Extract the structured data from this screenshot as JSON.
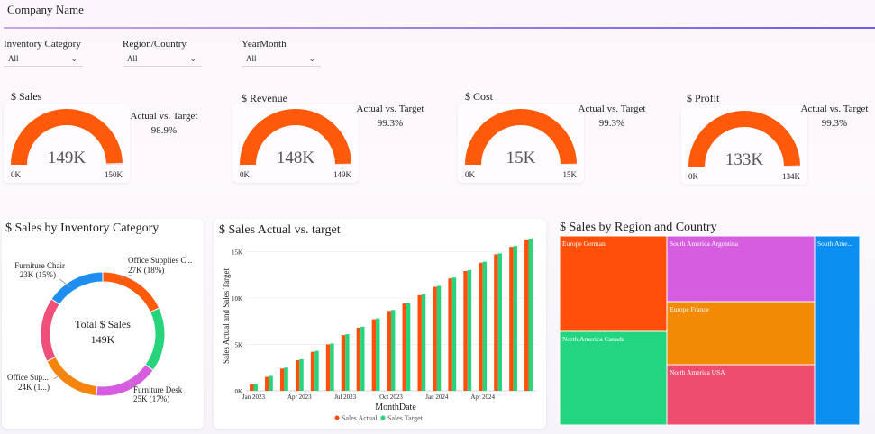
{
  "header": {
    "title": "Company Name"
  },
  "filters": [
    {
      "label": "Inventory Category",
      "value": "All"
    },
    {
      "label": "Region/Country",
      "value": "All"
    },
    {
      "label": "YearMonth",
      "value": "All"
    }
  ],
  "kpis": [
    {
      "title": "$ Sales",
      "value_label": "149K",
      "min_label": "0K",
      "max_label": "150K",
      "avt_label": "Actual vs. Target",
      "avt_pct": "98.9%",
      "fill": 0.989
    },
    {
      "title": "$ Revenue",
      "value_label": "148K",
      "min_label": "0K",
      "max_label": "149K",
      "avt_label": "Actual vs. Target",
      "avt_pct": "99.3%",
      "fill": 0.993
    },
    {
      "title": "$ Cost",
      "value_label": "15K",
      "min_label": "0K",
      "max_label": "15K",
      "avt_label": "Actual vs. Target",
      "avt_pct": "99.3%",
      "fill": 0.993
    },
    {
      "title": "$ Profit",
      "value_label": "133K",
      "min_label": "0K",
      "max_label": "134K",
      "avt_label": "Actual vs. Target",
      "avt_pct": "99.3%",
      "fill": 0.993
    }
  ],
  "colors": {
    "gauge": "#ff5a0a",
    "sales_actual": "#ff4f0a",
    "sales_target": "#27d47c",
    "donut": [
      "#ff5a0a",
      "#27d47c",
      "#d65ce0",
      "#f5840c",
      "#ef4f78",
      "#1e8fef"
    ],
    "treemap": [
      "#ff4f0a",
      "#d65ce0",
      "#0a8ff0",
      "#f28a06",
      "#22d67f",
      "#ef4d70"
    ]
  },
  "chart_data": [
    {
      "type": "pie",
      "title": "$ Sales by Inventory Category",
      "center_label": "Total $ Sales",
      "center_value": "149K",
      "slices": [
        {
          "name": "Office Supplies C...",
          "value": 27,
          "label": "27K (18%)"
        },
        {
          "name": "",
          "value": 25,
          "label": ""
        },
        {
          "name": "Furniture Desk",
          "value": 25,
          "label": "25K (17%)"
        },
        {
          "name": "Office Sup...",
          "value": 24,
          "label": "24K (1...)"
        },
        {
          "name": "",
          "value": 25,
          "label": ""
        },
        {
          "name": "Furniture Chair",
          "value": 23,
          "label": "23K (15%)"
        }
      ]
    },
    {
      "type": "bar",
      "title": "$ Sales Actual vs. target",
      "xlabel": "MonthDate",
      "ylabel": "Sales Actual and Sales Target",
      "ylim": [
        0,
        16000
      ],
      "yticks": [
        {
          "value": 0,
          "label": "0K"
        },
        {
          "value": 5000,
          "label": "5K"
        },
        {
          "value": 10000,
          "label": "10K"
        },
        {
          "value": 15000,
          "label": "15K"
        }
      ],
      "categories": [
        "Jan 2023",
        "Feb 2023",
        "Mar 2023",
        "Apr 2023",
        "May 2023",
        "Jun 2023",
        "Jul 2023",
        "Aug 2023",
        "Sep 2023",
        "Oct 2023",
        "Nov 2023",
        "Dec 2023",
        "Jan 2024",
        "Feb 2024",
        "Mar 2024",
        "Apr 2024",
        "May 2024",
        "Jun 2024",
        "Jul 2024"
      ],
      "xtick_labels": [
        {
          "index": 0,
          "label": "Jan 2023"
        },
        {
          "index": 3,
          "label": "Apr 2023"
        },
        {
          "index": 6,
          "label": "Jul 2023"
        },
        {
          "index": 9,
          "label": "Oct 2023"
        },
        {
          "index": 12,
          "label": "Jan 2024"
        },
        {
          "index": 15,
          "label": "Apr 2024"
        }
      ],
      "series": [
        {
          "name": "Sales Actual",
          "values": [
            700,
            1500,
            2400,
            3300,
            4200,
            5000,
            6000,
            6800,
            7700,
            8600,
            9400,
            10300,
            11200,
            12100,
            12900,
            13800,
            14700,
            15500,
            16300
          ]
        },
        {
          "name": "Sales Target",
          "values": [
            750,
            1600,
            2500,
            3400,
            4300,
            5100,
            6100,
            6900,
            7800,
            8700,
            9500,
            10400,
            11300,
            12200,
            13000,
            13900,
            14800,
            15600,
            16400
          ]
        }
      ]
    },
    {
      "type": "treemap",
      "title": "$ Sales by Region and Country",
      "items": [
        {
          "label": "Europe German"
        },
        {
          "label": "South America Argentina"
        },
        {
          "label": "South Ame..."
        },
        {
          "label": "Europe France"
        },
        {
          "label": "North America Canada"
        },
        {
          "label": "North America USA"
        }
      ]
    }
  ]
}
